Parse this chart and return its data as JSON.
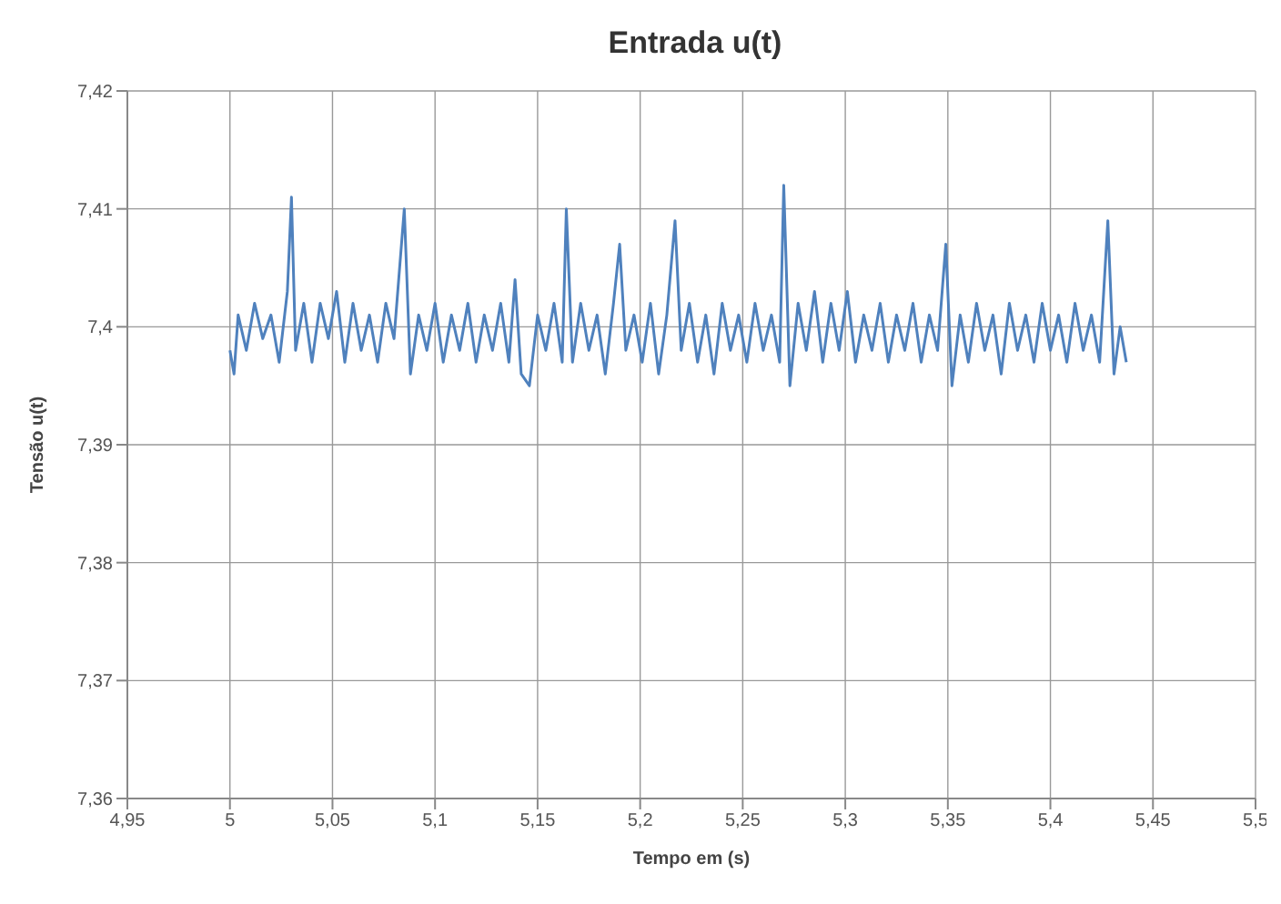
{
  "chart_data": {
    "type": "line",
    "title": "Entrada u(t)",
    "xlabel": "Tempo em (s)",
    "ylabel": "Tensão u(t)",
    "xlim": [
      4.95,
      5.5
    ],
    "xticks": [
      {
        "value": 4.95,
        "label": "4,95"
      },
      5,
      {
        "value": 5.05,
        "label": "5,05"
      },
      {
        "value": 5.1,
        "label": "5,1"
      },
      {
        "value": 5.15,
        "label": "5,15"
      },
      {
        "value": 5.2,
        "label": "5,2"
      },
      {
        "value": 5.25,
        "label": "5,25"
      },
      {
        "value": 5.3,
        "label": "5,3"
      },
      {
        "value": 5.35,
        "label": "5,35"
      },
      {
        "value": 5.4,
        "label": "5,4"
      },
      {
        "value": 5.45,
        "label": "5,45"
      },
      {
        "value": 5.5,
        "label": "5,5"
      }
    ],
    "ylim": [
      7.36,
      7.42
    ],
    "yticks": [
      {
        "value": 7.36,
        "label": "7,36"
      },
      {
        "value": 7.37,
        "label": "7,37"
      },
      {
        "value": 7.38,
        "label": "7,38"
      },
      {
        "value": 7.39,
        "label": "7,39"
      },
      {
        "value": 7.4,
        "label": "7,4"
      },
      {
        "value": 7.41,
        "label": "7,41"
      },
      {
        "value": 7.42,
        "label": "7,42"
      }
    ],
    "grid": true,
    "legend": false,
    "marker": "none",
    "line_style": "solid",
    "series": [
      {
        "color": "#4f81bd",
        "x": [
          5.0,
          5.002,
          5.004,
          5.008,
          5.012,
          5.016,
          5.02,
          5.024,
          5.028,
          5.03,
          5.032,
          5.036,
          5.04,
          5.044,
          5.048,
          5.052,
          5.056,
          5.06,
          5.064,
          5.068,
          5.072,
          5.076,
          5.08,
          5.085,
          5.088,
          5.092,
          5.096,
          5.1,
          5.104,
          5.108,
          5.112,
          5.116,
          5.12,
          5.124,
          5.128,
          5.132,
          5.136,
          5.139,
          5.142,
          5.146,
          5.15,
          5.154,
          5.158,
          5.162,
          5.164,
          5.167,
          5.171,
          5.175,
          5.179,
          5.183,
          5.187,
          5.19,
          5.193,
          5.197,
          5.201,
          5.205,
          5.209,
          5.213,
          5.217,
          5.22,
          5.224,
          5.228,
          5.232,
          5.236,
          5.24,
          5.244,
          5.248,
          5.252,
          5.256,
          5.26,
          5.264,
          5.268,
          5.27,
          5.273,
          5.277,
          5.281,
          5.285,
          5.289,
          5.293,
          5.297,
          5.301,
          5.305,
          5.309,
          5.313,
          5.317,
          5.321,
          5.325,
          5.329,
          5.333,
          5.337,
          5.341,
          5.345,
          5.349,
          5.352,
          5.356,
          5.36,
          5.364,
          5.368,
          5.372,
          5.376,
          5.38,
          5.384,
          5.388,
          5.392,
          5.396,
          5.4,
          5.404,
          5.408,
          5.412,
          5.416,
          5.42,
          5.424,
          5.428,
          5.431,
          5.434,
          5.437
        ],
        "values": [
          7.398,
          7.396,
          7.401,
          7.398,
          7.402,
          7.399,
          7.401,
          7.397,
          7.403,
          7.411,
          7.398,
          7.402,
          7.397,
          7.402,
          7.399,
          7.403,
          7.397,
          7.402,
          7.398,
          7.401,
          7.397,
          7.402,
          7.399,
          7.41,
          7.396,
          7.401,
          7.398,
          7.402,
          7.397,
          7.401,
          7.398,
          7.402,
          7.397,
          7.401,
          7.398,
          7.402,
          7.397,
          7.404,
          7.396,
          7.395,
          7.401,
          7.398,
          7.402,
          7.397,
          7.41,
          7.397,
          7.402,
          7.398,
          7.401,
          7.396,
          7.402,
          7.407,
          7.398,
          7.401,
          7.397,
          7.402,
          7.396,
          7.401,
          7.409,
          7.398,
          7.402,
          7.397,
          7.401,
          7.396,
          7.402,
          7.398,
          7.401,
          7.397,
          7.402,
          7.398,
          7.401,
          7.397,
          7.412,
          7.395,
          7.402,
          7.398,
          7.403,
          7.397,
          7.402,
          7.398,
          7.403,
          7.397,
          7.401,
          7.398,
          7.402,
          7.397,
          7.401,
          7.398,
          7.402,
          7.397,
          7.401,
          7.398,
          7.407,
          7.395,
          7.401,
          7.397,
          7.402,
          7.398,
          7.401,
          7.396,
          7.402,
          7.398,
          7.401,
          7.397,
          7.402,
          7.398,
          7.401,
          7.397,
          7.402,
          7.398,
          7.401,
          7.397,
          7.409,
          7.396,
          7.4,
          7.397
        ]
      }
    ]
  }
}
